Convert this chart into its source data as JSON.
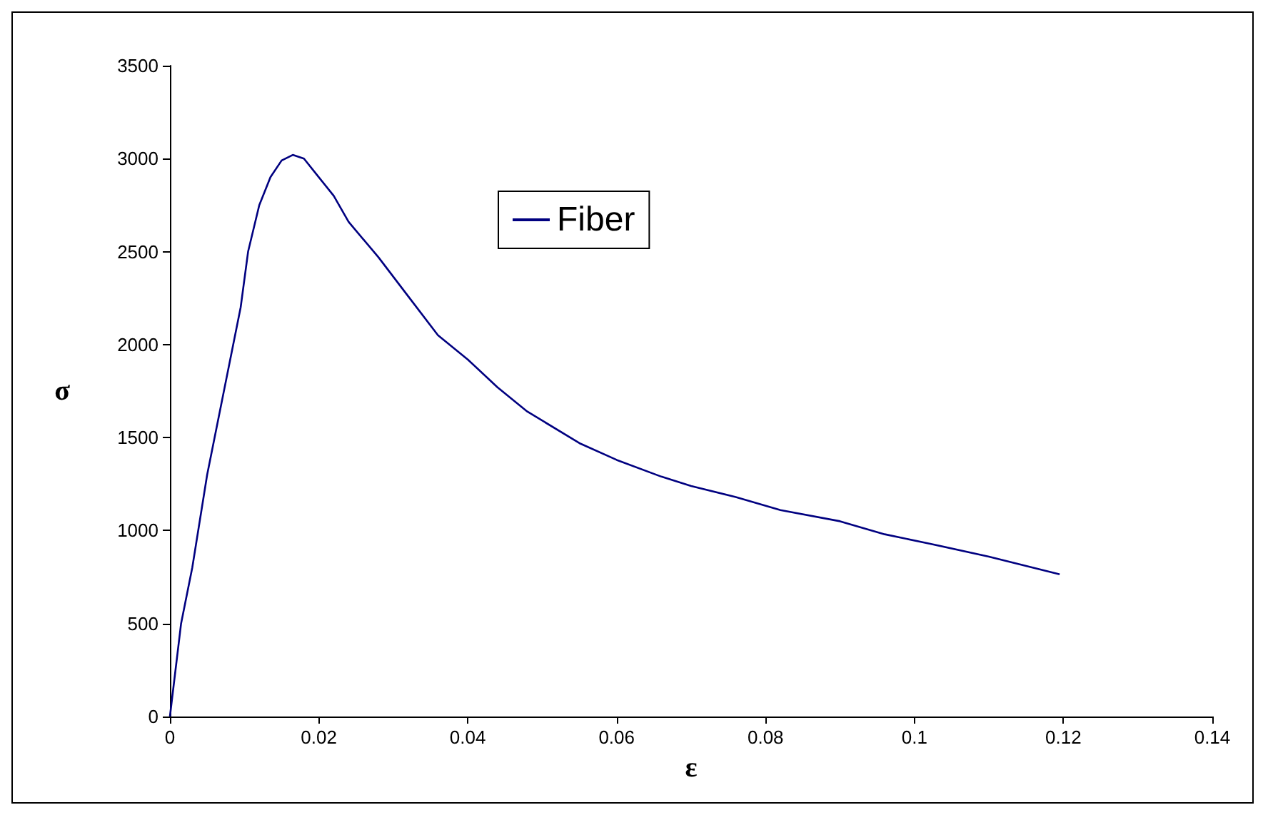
{
  "chart_data": {
    "type": "line",
    "xlabel": "ε",
    "ylabel": "σ",
    "x": [
      0,
      0.0015,
      0.003,
      0.005,
      0.007,
      0.0095,
      0.0105,
      0.012,
      0.0135,
      0.015,
      0.0165,
      0.018,
      0.02,
      0.022,
      0.024,
      0.028,
      0.032,
      0.036,
      0.04,
      0.044,
      0.048,
      0.055,
      0.06,
      0.066,
      0.07,
      0.076,
      0.082,
      0.09,
      0.096,
      0.102,
      0.11,
      0.1195
    ],
    "series": [
      {
        "name": "Fiber",
        "color": "#000080",
        "values": [
          0,
          500,
          800,
          1300,
          1700,
          2200,
          2500,
          2750,
          2900,
          2990,
          3020,
          3000,
          2900,
          2800,
          2660,
          2470,
          2260,
          2050,
          1920,
          1770,
          1640,
          1470,
          1380,
          1290,
          1240,
          1180,
          1110,
          1050,
          980,
          930,
          860,
          765
        ]
      }
    ],
    "xlim": [
      0,
      0.14
    ],
    "xticks": [
      0,
      0.02,
      0.04,
      0.06,
      0.08,
      0.1,
      0.12,
      0.14
    ],
    "ylim": [
      0,
      3500
    ],
    "yticks": [
      0,
      500,
      1000,
      1500,
      2000,
      2500,
      3000,
      3500
    ],
    "grid": false,
    "legend": "top",
    "marker": "none",
    "line_style": "solid"
  }
}
